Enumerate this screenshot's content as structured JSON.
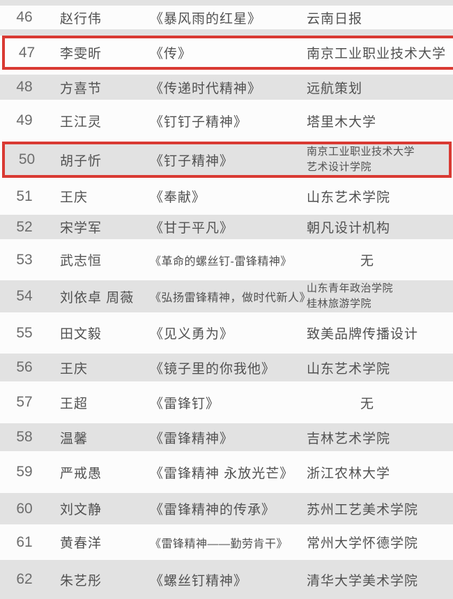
{
  "colors": {
    "highlight_border": "#d93a33",
    "row_shade": "#e2e2e2",
    "page_background": "#fcfcfc",
    "text": "#515151",
    "number_text": "#6d6d6d"
  },
  "table": {
    "rows": [
      {
        "no": "46",
        "name": "赵行伟",
        "title": "《暴风雨的红星》",
        "institution": [
          "云南日报"
        ],
        "shaded": false,
        "highlighted": false
      },
      {
        "no": "47",
        "name": "李雯昕",
        "title": "《传》",
        "institution": [
          "南京工业职业技术大学"
        ],
        "shaded": false,
        "highlighted": true
      },
      {
        "no": "48",
        "name": "方喜节",
        "title": "《传递时代精神》",
        "institution": [
          "远航策划"
        ],
        "shaded": true,
        "highlighted": false
      },
      {
        "no": "49",
        "name": "王江灵",
        "title": "《钉钉子精神》",
        "institution": [
          "塔里木大学"
        ],
        "shaded": false,
        "highlighted": false
      },
      {
        "no": "50",
        "name": "胡子忻",
        "title": "《钉子精神》",
        "institution": [
          "南京工业职业技术大学",
          "艺术设计学院"
        ],
        "shaded": true,
        "highlighted": true
      },
      {
        "no": "51",
        "name": "王庆",
        "title": "《奉献》",
        "institution": [
          "山东艺术学院"
        ],
        "shaded": false,
        "highlighted": false
      },
      {
        "no": "52",
        "name": "宋学军",
        "title": "《甘于平凡》",
        "institution": [
          "朝凡设计机构"
        ],
        "shaded": true,
        "highlighted": false
      },
      {
        "no": "53",
        "name": "武志恒",
        "title": "《革命的螺丝钉-雷锋精神》",
        "institution": [
          "无"
        ],
        "shaded": false,
        "highlighted": false,
        "title_small": true
      },
      {
        "no": "54",
        "name": "刘依卓 周薇",
        "title": "《弘扬雷锋精神，做时代新人》",
        "institution": [
          "山东青年政治学院",
          "桂林旅游学院"
        ],
        "shaded": true,
        "highlighted": false,
        "title_small": true
      },
      {
        "no": "55",
        "name": "田文毅",
        "title": "《见义勇为》",
        "institution": [
          "致美品牌传播设计"
        ],
        "shaded": false,
        "highlighted": false
      },
      {
        "no": "56",
        "name": "王庆",
        "title": "《镜子里的你我他》",
        "institution": [
          "山东艺术学院"
        ],
        "shaded": true,
        "highlighted": false
      },
      {
        "no": "57",
        "name": "王超",
        "title": "《雷锋钉》",
        "institution": [
          "无"
        ],
        "shaded": false,
        "highlighted": false
      },
      {
        "no": "58",
        "name": "温馨",
        "title": "《雷锋精神》",
        "institution": [
          "吉林艺术学院"
        ],
        "shaded": true,
        "highlighted": false
      },
      {
        "no": "59",
        "name": "严戒愚",
        "title": "《雷锋精神 永放光芒》",
        "institution": [
          "浙江农林大学"
        ],
        "shaded": false,
        "highlighted": false
      },
      {
        "no": "60",
        "name": "刘文静",
        "title": "《雷锋精神的传承》",
        "institution": [
          "苏州工艺美术学院"
        ],
        "shaded": true,
        "highlighted": false
      },
      {
        "no": "61",
        "name": "黄春洋",
        "title": "《雷锋精神——勤劳肯干》",
        "institution": [
          "常州大学怀德学院"
        ],
        "shaded": false,
        "highlighted": false,
        "title_small": true
      },
      {
        "no": "62",
        "name": "朱艺彤",
        "title": "《螺丝钉精神》",
        "institution": [
          "清华大学美术学院"
        ],
        "shaded": true,
        "highlighted": false
      }
    ]
  }
}
